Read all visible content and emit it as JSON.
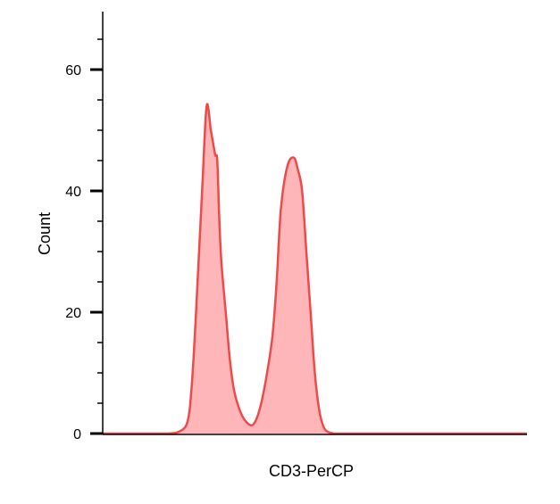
{
  "chart_data": {
    "type": "area",
    "title": "",
    "xlabel": "CD3-PerCP",
    "ylabel": "Count",
    "ylim": [
      0,
      70
    ],
    "xlim": [
      0,
      1
    ],
    "y_ticks_major": [
      0,
      20,
      40,
      60
    ],
    "y_tick_labels": [
      "0",
      "20",
      "40",
      "60"
    ],
    "grid": false,
    "legend": "none",
    "series": [
      {
        "x": [
          0.0,
          0.05,
          0.1,
          0.15,
          0.18,
          0.2,
          0.21,
          0.22,
          0.235,
          0.245,
          0.255,
          0.265,
          0.27,
          0.275,
          0.28,
          0.29,
          0.3,
          0.31,
          0.325,
          0.34,
          0.355,
          0.37,
          0.385,
          0.4,
          0.41,
          0.42,
          0.435,
          0.45,
          0.46,
          0.47,
          0.48,
          0.49,
          0.5,
          0.51,
          0.52,
          0.53,
          0.545,
          0.56,
          0.575,
          0.59,
          0.61,
          0.63,
          0.65,
          0.7,
          0.8,
          0.9,
          1.0
        ],
        "values": [
          0,
          0,
          0,
          0,
          0.3,
          2,
          8,
          20,
          41,
          54,
          50,
          46,
          45,
          35,
          28,
          20,
          12,
          7,
          3.5,
          1.8,
          1.5,
          4,
          9,
          16,
          25,
          37,
          44,
          45.5,
          43.5,
          40,
          30,
          20,
          10,
          4,
          1.2,
          0.3,
          0,
          0,
          0,
          0,
          0,
          0,
          0,
          0,
          0,
          0,
          0
        ],
        "fill_color": "#ffb6b9",
        "line_color": "#ee4a4a"
      }
    ]
  }
}
